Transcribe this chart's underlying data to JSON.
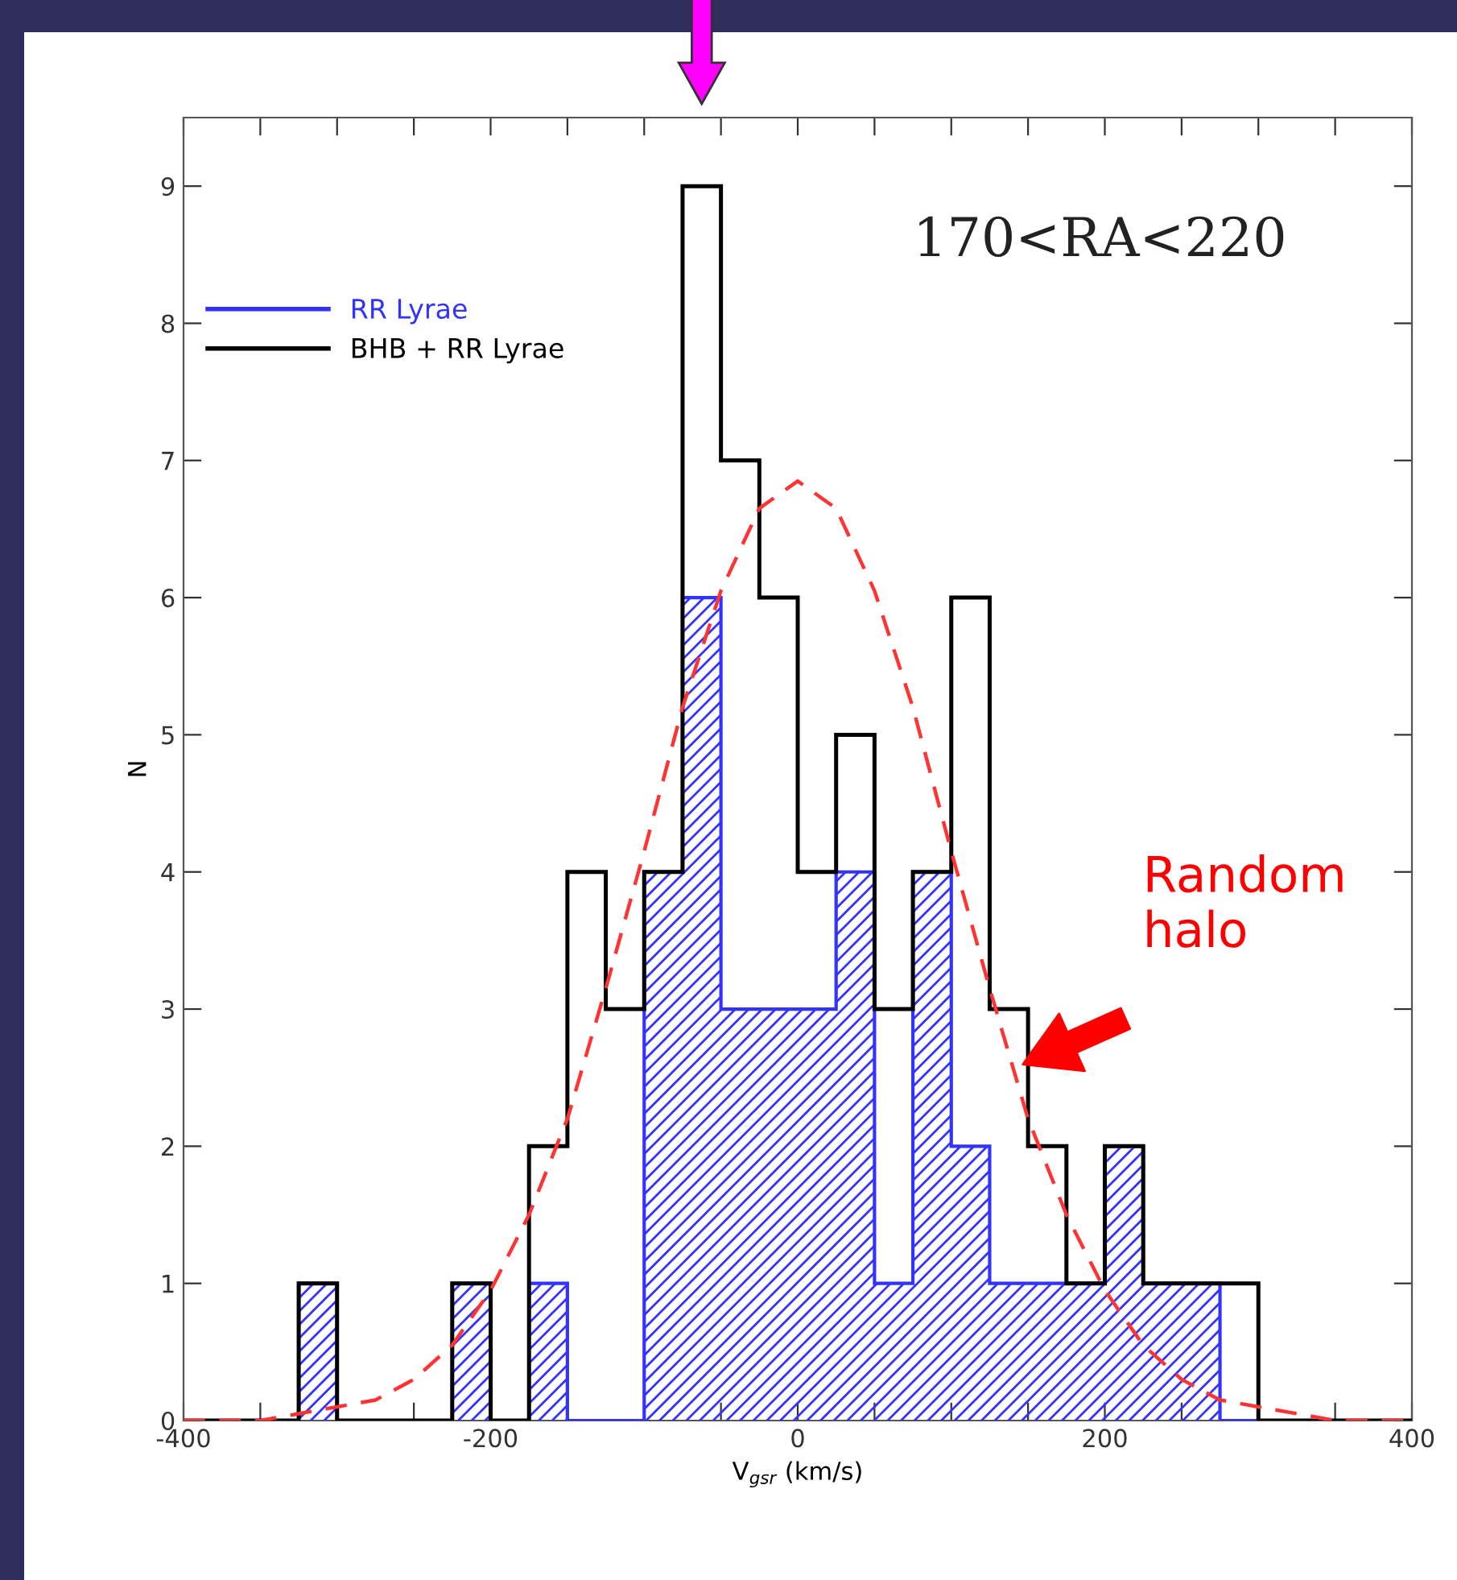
{
  "chart_data": {
    "type": "histogram",
    "title": "170<RA<220",
    "xlabel": "V$_{gsr}$ (km/s)",
    "ylabel": "N",
    "bins": [
      -400,
      -375,
      -350,
      -325,
      -300,
      -275,
      -250,
      -225,
      -200,
      -175,
      -150,
      -125,
      -100,
      -75,
      -50,
      -25,
      0,
      25,
      50,
      75,
      100,
      125,
      150,
      175,
      200,
      225,
      250,
      275,
      300,
      325,
      350,
      375,
      400
    ],
    "series": [
      {
        "name": "RR Lyrae",
        "color": "#3333ff",
        "values": [
          0,
          0,
          0,
          1,
          0,
          0,
          0,
          1,
          0,
          1,
          0,
          0,
          4,
          6,
          3,
          3,
          3,
          4,
          1,
          4,
          2,
          1,
          1,
          1,
          2,
          1,
          1,
          0,
          0,
          0,
          0,
          0
        ]
      },
      {
        "name": "BHB + RR Lyrae",
        "color": "#000000",
        "values": [
          0,
          0,
          0,
          1,
          0,
          0,
          0,
          1,
          0,
          2,
          4,
          3,
          4,
          9,
          7,
          6,
          4,
          5,
          3,
          4,
          6,
          3,
          2,
          1,
          2,
          1,
          1,
          1,
          0,
          0,
          0,
          0
        ]
      },
      {
        "type": "line",
        "color": "#ff3333",
        "line_style": "dashed",
        "x": [
          -400,
          -375,
          -350,
          -325,
          -300,
          -275,
          -250,
          -225,
          -200,
          -175,
          -150,
          -125,
          -100,
          -75,
          -50,
          -25,
          0,
          25,
          50,
          75,
          100,
          125,
          150,
          175,
          200,
          225,
          250,
          275,
          300,
          325,
          350,
          375,
          400
        ],
        "values": [
          0,
          0,
          0,
          0.05,
          0.1,
          0.15,
          0.3,
          0.55,
          0.95,
          1.5,
          2.2,
          3.15,
          4.15,
          5.2,
          6.05,
          6.65,
          6.85,
          6.65,
          6.05,
          5.2,
          4.15,
          3.15,
          2.2,
          1.5,
          0.95,
          0.55,
          0.3,
          0.15,
          0.1,
          0.05,
          0,
          0,
          0
        ]
      }
    ],
    "annotations": [
      "Random\nhalo"
    ],
    "xlim": [
      -400,
      400
    ],
    "ylim": [
      0,
      9.5
    ],
    "xticks": [
      -400,
      {
        "value": -350,
        "label": null
      },
      {
        "value": -300,
        "label": null
      },
      {
        "value": -250,
        "label": null
      },
      -200,
      {
        "value": -150,
        "label": null
      },
      {
        "value": -100,
        "label": null
      },
      {
        "value": -50,
        "label": null
      },
      0,
      {
        "value": 50,
        "label": null
      },
      {
        "value": 100,
        "label": null
      },
      {
        "value": 150,
        "label": null
      },
      200,
      {
        "value": 250,
        "label": null
      },
      {
        "value": 300,
        "label": null
      },
      {
        "value": 350,
        "label": null
      },
      400
    ],
    "yticks": [
      0,
      1,
      2,
      3,
      4,
      5,
      6,
      7,
      8,
      9
    ],
    "legend": "top left",
    "grid": false
  }
}
